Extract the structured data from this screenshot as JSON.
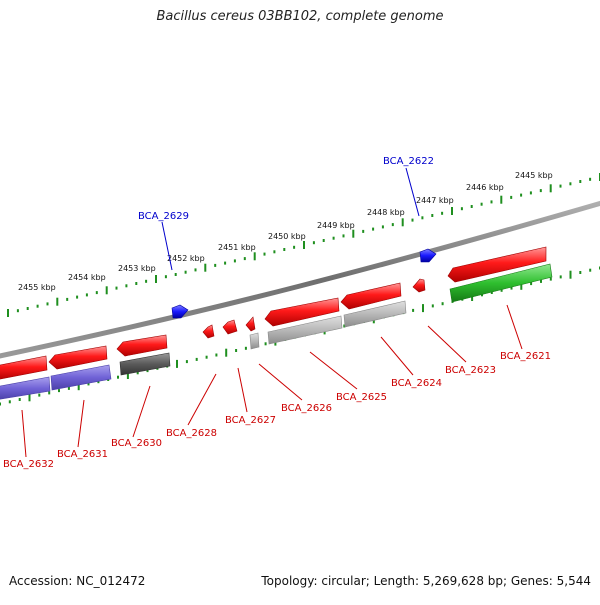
{
  "title": "Bacillus cereus 03BB102, complete genome",
  "footer": {
    "accession": "Accession: NC_012472",
    "summary": "Topology: circular; Length: 5,269,628 bp; Genes: 5,544"
  },
  "ruler_labels": [
    "2445 kbp",
    "2446 kbp",
    "2447 kbp",
    "2448 kbp",
    "2449 kbp",
    "2450 kbp",
    "2451 kbp",
    "2452 kbp",
    "2453 kbp",
    "2454 kbp",
    "2455 kbp"
  ],
  "forward_labels": [
    "BCA_2622",
    "BCA_2629"
  ],
  "reverse_labels": [
    "BCA_2621",
    "BCA_2623",
    "BCA_2624",
    "BCA_2625",
    "BCA_2626",
    "BCA_2627",
    "BCA_2628",
    "BCA_2630",
    "BCA_2631",
    "BCA_2632"
  ],
  "colors": {
    "forward_label": "#0000cc",
    "reverse_label": "#cc0000",
    "gene_red": "#ff1a1a",
    "gene_blue": "#1a1aff",
    "ruler_green": "#1f8f1f",
    "backbone": "#777777"
  }
}
